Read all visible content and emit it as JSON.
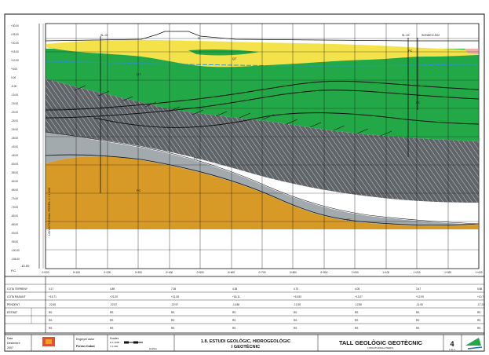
{
  "drawing": {
    "title_main": "TALL GEOLÒGIC GEOTÈCNIC",
    "title_sub": "LONGITUDINAL PERFIL",
    "study_line1": "1.8. ESTUDI GEOLÒGIC, HIDROGEOLÒGIC",
    "study_line2": "I GEOTÈCNIC",
    "sheet_number": "4",
    "sheet_of": "1 de 1",
    "date_label": "Data",
    "date_value": "Desembre",
    "year_value": "2007",
    "author_role": "Enginyer autor",
    "author_name": "Ferran Cabot",
    "scale_label": "Escales",
    "scale_h": "H 1:1000",
    "scale_v": "V 1:200",
    "scale_graphic": "Gràfica",
    "profile_label": "LONGITUDINAL PERFIL  1 / 1 000"
  },
  "profile": {
    "datum_label": "P.C.",
    "datum_value": "-10.00",
    "left_scale_labels": [
      "+30.00",
      "+25.00",
      "+20.00",
      "+15.00",
      "+10.00",
      "+5.00",
      "0.00",
      "-5.00",
      "-10.00",
      "-15.00",
      "-20.00",
      "-25.00",
      "-30.00",
      "-35.00",
      "-40.00",
      "-45.00",
      "-50.00",
      "-55.00",
      "-60.00",
      "-65.00",
      "-70.00",
      "-75.00",
      "-80.00",
      "-85.00",
      "-90.00",
      "-95.00",
      "-100.00",
      "-105.00"
    ],
    "chainage_labels": [
      "0+000",
      "0+100",
      "0+200",
      "0+300",
      "0+400",
      "0+500",
      "0+600",
      "0+700",
      "0+800",
      "0+900",
      "1+000",
      "1+100",
      "1+200",
      "1+300",
      "1+400"
    ],
    "unit_labels": [
      "R",
      "QT",
      "QT",
      "PC",
      "PC",
      "PD",
      "PC",
      "PC"
    ],
    "borehole_labels": [
      "SL-01",
      "SL-02",
      "SONDEO-S02"
    ]
  },
  "data_table": {
    "row_labels": [
      "COTA TERRENY",
      "COTA RASANT",
      "PENDENT",
      "ESTRAT",
      "",
      "",
      ""
    ],
    "values_row1": [
      "3.17",
      "4.89",
      "7.35",
      "4.38",
      "4.70",
      "4.05",
      "3.47",
      "5.88"
    ],
    "values_row2": [
      "+15.71",
      "+21.00",
      "+21.08",
      "+18.11",
      "+15.83",
      "+13.07",
      "+12.09",
      "+10.71"
    ],
    "values_row3": [
      "-22.65",
      "-22.57",
      "-22.97",
      "-14.58",
      "-13.30",
      "-12.80",
      "-11.05",
      "-17.21"
    ],
    "values_row4": [
      "RS",
      "RS",
      "RS",
      "RS",
      "RS",
      "RS",
      "RS",
      "RS"
    ],
    "values_row5": [
      "RS",
      "RS",
      "RS",
      "RS",
      "RS",
      "RS",
      "RS",
      "RS"
    ],
    "values_row6": [
      "RS",
      "RS",
      "RS",
      "RS",
      "RS",
      "RS",
      "RS",
      "RS"
    ]
  },
  "colors": {
    "quaternary_green": "#23a848",
    "fill_yellow": "#f4e24a",
    "clay_grey": "#9ea7ab",
    "hatched_dark": "#555a5e",
    "sand_orange": "#d79a27",
    "water_line": "#2f8fd6",
    "grid_black": "#111111"
  }
}
